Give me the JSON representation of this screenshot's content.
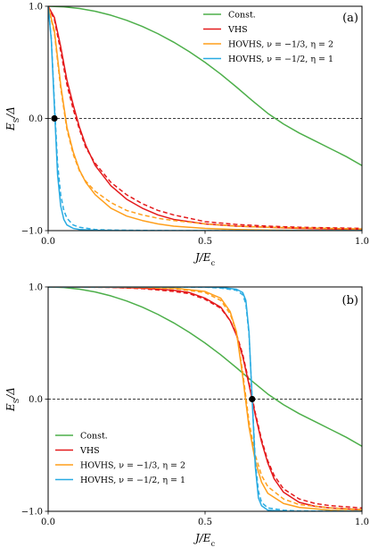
{
  "chart_data": [
    {
      "type": "line",
      "panel_label": "(a)",
      "xlabel": "J/E_c",
      "ylabel": "E_S/Δ",
      "xlim": [
        0,
        1
      ],
      "ylim": [
        -1,
        1
      ],
      "xticks": [
        "0.0",
        "0.5",
        "1.0"
      ],
      "yticks": [
        "-1.0",
        "0.0",
        "1.0"
      ],
      "legend": "top-right",
      "hlines": [
        1,
        0,
        -1
      ],
      "marker": {
        "x": 0.02,
        "y": 0.0
      },
      "series": [
        {
          "name": "Const.",
          "color": "#4daf4a",
          "style": "solid",
          "x": [
            0,
            0.05,
            0.1,
            0.15,
            0.2,
            0.25,
            0.3,
            0.35,
            0.4,
            0.45,
            0.5,
            0.55,
            0.6,
            0.65,
            0.7,
            0.75,
            0.8,
            0.85,
            0.9,
            0.95,
            1.0
          ],
          "y": [
            1.0,
            0.995,
            0.98,
            0.955,
            0.92,
            0.875,
            0.82,
            0.755,
            0.68,
            0.595,
            0.5,
            0.395,
            0.28,
            0.16,
            0.045,
            -0.05,
            -0.13,
            -0.2,
            -0.27,
            -0.34,
            -0.42
          ]
        },
        {
          "name": "VHS",
          "color": "#e41a1c",
          "style": "solid",
          "x": [
            0,
            0.02,
            0.04,
            0.06,
            0.08,
            0.1,
            0.12,
            0.15,
            0.2,
            0.25,
            0.3,
            0.35,
            0.4,
            0.5,
            0.6,
            0.7,
            0.8,
            0.9,
            1.0
          ],
          "y": [
            1.0,
            0.9,
            0.64,
            0.34,
            0.12,
            -0.08,
            -0.24,
            -0.42,
            -0.6,
            -0.72,
            -0.8,
            -0.86,
            -0.9,
            -0.94,
            -0.96,
            -0.97,
            -0.98,
            -0.985,
            -0.99
          ]
        },
        {
          "name": "VHS (dashed)",
          "color": "#e41a1c",
          "style": "dashed",
          "x": [
            0,
            0.02,
            0.04,
            0.06,
            0.08,
            0.1,
            0.12,
            0.15,
            0.2,
            0.25,
            0.3,
            0.35,
            0.4,
            0.5,
            0.6,
            0.7,
            0.8,
            0.9,
            1.0
          ],
          "y": [
            1.0,
            0.88,
            0.6,
            0.3,
            0.08,
            -0.1,
            -0.26,
            -0.4,
            -0.57,
            -0.68,
            -0.76,
            -0.82,
            -0.86,
            -0.92,
            -0.945,
            -0.96,
            -0.97,
            -0.975,
            -0.98
          ]
        },
        {
          "name": "HOVHS, ν = −1/3, η = 2",
          "color": "#ff9f1c",
          "style": "solid",
          "x": [
            0,
            0.02,
            0.04,
            0.06,
            0.08,
            0.1,
            0.12,
            0.15,
            0.2,
            0.25,
            0.3,
            0.35,
            0.4,
            0.5,
            0.6,
            0.7,
            0.8,
            0.9,
            1.0
          ],
          "y": [
            1.0,
            0.78,
            0.3,
            -0.08,
            -0.3,
            -0.46,
            -0.57,
            -0.68,
            -0.8,
            -0.87,
            -0.91,
            -0.94,
            -0.96,
            -0.98,
            -0.99,
            -0.995,
            -0.997,
            -0.998,
            -0.999
          ]
        },
        {
          "name": "HOVHS, ν = −1/3, η = 2 (dashed)",
          "color": "#ff9f1c",
          "style": "dashed",
          "x": [
            0,
            0.02,
            0.04,
            0.06,
            0.08,
            0.1,
            0.12,
            0.15,
            0.2,
            0.25,
            0.3,
            0.35,
            0.4,
            0.5,
            0.6,
            0.7,
            0.8,
            0.9,
            1.0
          ],
          "y": [
            1.0,
            0.76,
            0.27,
            -0.1,
            -0.32,
            -0.47,
            -0.56,
            -0.65,
            -0.75,
            -0.82,
            -0.86,
            -0.89,
            -0.91,
            -0.94,
            -0.96,
            -0.97,
            -0.975,
            -0.98,
            -0.985
          ]
        },
        {
          "name": "HOVHS, ν = −1/2, η = 1",
          "color": "#29abe2",
          "style": "solid",
          "x": [
            0,
            0.01,
            0.02,
            0.03,
            0.04,
            0.05,
            0.06,
            0.08,
            0.1,
            0.15,
            0.2,
            0.3,
            0.4,
            0.6,
            1.0
          ],
          "y": [
            1.0,
            0.7,
            0.1,
            -0.5,
            -0.78,
            -0.9,
            -0.95,
            -0.98,
            -0.99,
            -0.997,
            -0.999,
            -1.0,
            -1.0,
            -1.0,
            -1.0
          ]
        },
        {
          "name": "HOVHS, ν = −1/2, η = 1 (dashed)",
          "color": "#29abe2",
          "style": "dashed",
          "x": [
            0,
            0.01,
            0.02,
            0.03,
            0.04,
            0.05,
            0.06,
            0.08,
            0.1,
            0.15,
            0.2,
            0.3,
            0.4,
            0.6,
            1.0
          ],
          "y": [
            1.0,
            0.72,
            0.14,
            -0.4,
            -0.68,
            -0.82,
            -0.89,
            -0.95,
            -0.97,
            -0.99,
            -0.995,
            -0.998,
            -1.0,
            -1.0,
            -1.0
          ]
        }
      ]
    },
    {
      "type": "line",
      "panel_label": "(b)",
      "xlabel": "J/E_c",
      "ylabel": "E_S/Δ",
      "xlim": [
        0,
        1
      ],
      "ylim": [
        -1,
        1
      ],
      "xticks": [
        "0.0",
        "0.5",
        "1.0"
      ],
      "yticks": [
        "-1.0",
        "0.0",
        "1.0"
      ],
      "legend": "bottom-left",
      "hlines": [
        1,
        0,
        -1
      ],
      "marker": {
        "x": 0.65,
        "y": 0.0
      },
      "series": [
        {
          "name": "Const.",
          "color": "#4daf4a",
          "style": "solid",
          "x": [
            0,
            0.05,
            0.1,
            0.15,
            0.2,
            0.25,
            0.3,
            0.35,
            0.4,
            0.45,
            0.5,
            0.55,
            0.6,
            0.65,
            0.7,
            0.75,
            0.8,
            0.85,
            0.9,
            0.95,
            1.0
          ],
          "y": [
            1.0,
            0.995,
            0.98,
            0.955,
            0.92,
            0.875,
            0.82,
            0.755,
            0.68,
            0.595,
            0.5,
            0.395,
            0.28,
            0.16,
            0.045,
            -0.05,
            -0.13,
            -0.2,
            -0.27,
            -0.34,
            -0.42
          ]
        },
        {
          "name": "VHS",
          "color": "#e41a1c",
          "style": "solid",
          "x": [
            0,
            0.1,
            0.2,
            0.3,
            0.4,
            0.45,
            0.5,
            0.55,
            0.58,
            0.6,
            0.62,
            0.64,
            0.66,
            0.68,
            0.7,
            0.72,
            0.75,
            0.8,
            0.85,
            0.9,
            1.0
          ],
          "y": [
            1.0,
            0.999,
            0.997,
            0.99,
            0.97,
            0.95,
            0.9,
            0.82,
            0.7,
            0.57,
            0.38,
            0.13,
            -0.14,
            -0.38,
            -0.57,
            -0.71,
            -0.83,
            -0.92,
            -0.955,
            -0.97,
            -0.985
          ]
        },
        {
          "name": "VHS (dashed)",
          "color": "#e41a1c",
          "style": "dashed",
          "x": [
            0,
            0.1,
            0.2,
            0.3,
            0.4,
            0.45,
            0.5,
            0.55,
            0.58,
            0.6,
            0.62,
            0.64,
            0.66,
            0.68,
            0.7,
            0.72,
            0.75,
            0.8,
            0.85,
            0.9,
            1.0
          ],
          "y": [
            1.0,
            0.999,
            0.996,
            0.985,
            0.96,
            0.94,
            0.89,
            0.81,
            0.7,
            0.58,
            0.4,
            0.15,
            -0.12,
            -0.36,
            -0.55,
            -0.68,
            -0.8,
            -0.89,
            -0.93,
            -0.95,
            -0.97
          ]
        },
        {
          "name": "HOVHS, ν = −1/3, η = 2",
          "color": "#ff9f1c",
          "style": "solid",
          "x": [
            0,
            0.1,
            0.2,
            0.3,
            0.4,
            0.5,
            0.55,
            0.58,
            0.6,
            0.62,
            0.64,
            0.66,
            0.68,
            0.7,
            0.75,
            0.8,
            0.9,
            1.0
          ],
          "y": [
            1.0,
            1.0,
            0.999,
            0.997,
            0.99,
            0.96,
            0.9,
            0.78,
            0.6,
            0.2,
            -0.25,
            -0.55,
            -0.74,
            -0.84,
            -0.93,
            -0.965,
            -0.99,
            -0.997
          ]
        },
        {
          "name": "HOVHS, ν = −1/3, η = 2 (dashed)",
          "color": "#ff9f1c",
          "style": "dashed",
          "x": [
            0,
            0.1,
            0.2,
            0.3,
            0.4,
            0.5,
            0.55,
            0.58,
            0.6,
            0.62,
            0.64,
            0.66,
            0.68,
            0.7,
            0.75,
            0.8,
            0.9,
            1.0
          ],
          "y": [
            1.0,
            1.0,
            0.998,
            0.995,
            0.985,
            0.95,
            0.88,
            0.76,
            0.6,
            0.24,
            -0.2,
            -0.5,
            -0.68,
            -0.78,
            -0.89,
            -0.94,
            -0.97,
            -0.985
          ]
        },
        {
          "name": "HOVHS, ν = −1/2, η = 1",
          "color": "#29abe2",
          "style": "solid",
          "x": [
            0,
            0.2,
            0.4,
            0.5,
            0.55,
            0.6,
            0.62,
            0.63,
            0.64,
            0.65,
            0.66,
            0.67,
            0.68,
            0.7,
            0.75,
            0.8,
            1.0
          ],
          "y": [
            1.0,
            1.0,
            1.0,
            0.999,
            0.995,
            0.98,
            0.95,
            0.88,
            0.6,
            0.0,
            -0.6,
            -0.88,
            -0.95,
            -0.99,
            -0.999,
            -1.0,
            -1.0
          ]
        },
        {
          "name": "HOVHS, ν = −1/2, η = 1 (dashed)",
          "color": "#29abe2",
          "style": "dashed",
          "x": [
            0,
            0.2,
            0.4,
            0.5,
            0.55,
            0.6,
            0.62,
            0.63,
            0.64,
            0.65,
            0.66,
            0.67,
            0.68,
            0.7,
            0.75,
            0.8,
            1.0
          ],
          "y": [
            1.0,
            1.0,
            0.999,
            0.998,
            0.99,
            0.97,
            0.93,
            0.85,
            0.58,
            0.02,
            -0.55,
            -0.82,
            -0.92,
            -0.97,
            -0.99,
            -0.997,
            -1.0
          ]
        }
      ]
    }
  ]
}
